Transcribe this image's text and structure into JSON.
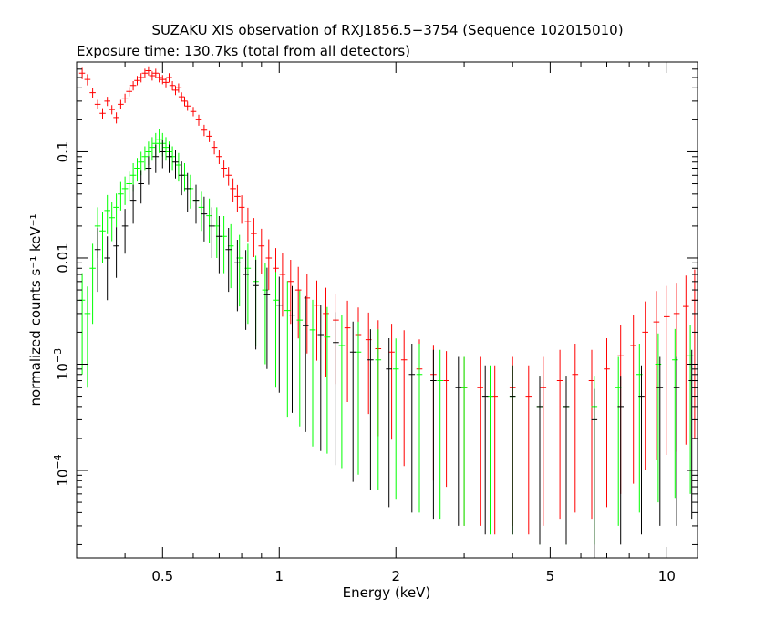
{
  "chart_data": {
    "type": "scatter",
    "title": "SUZAKU XIS observation of RXJ1856.5−3754 (Sequence 102015010)",
    "subtitle": "Exposure time: 130.7ks (total from all detectors)",
    "xlabel": "Energy (keV)",
    "ylabel": "normalized counts s⁻¹ keV⁻¹",
    "xscale": "log",
    "yscale": "log",
    "xlim": [
      0.3,
      12
    ],
    "ylim": [
      1.5e-05,
      0.7
    ],
    "grid": false,
    "x_ticks": [
      {
        "value": 0.5,
        "label": "0.5"
      },
      {
        "value": 1,
        "label": "1"
      },
      {
        "value": 2,
        "label": "2"
      },
      {
        "value": 5,
        "label": "5"
      },
      {
        "value": 10,
        "label": "10"
      }
    ],
    "y_ticks": [
      {
        "value": 0.1,
        "label": "0.1"
      },
      {
        "value": 0.01,
        "label": "0.01"
      },
      {
        "value": 0.001,
        "base": "10",
        "exp": "−3"
      },
      {
        "value": 0.0001,
        "base": "10",
        "exp": "−4"
      }
    ],
    "series": [
      {
        "color": "#ff0000",
        "points": [
          [
            0.31,
            0.55,
            0.12
          ],
          [
            0.32,
            0.48,
            0.12
          ],
          [
            0.33,
            0.36,
            0.1
          ],
          [
            0.34,
            0.28,
            0.1
          ],
          [
            0.35,
            0.23,
            0.12
          ],
          [
            0.36,
            0.3,
            0.1
          ],
          [
            0.37,
            0.25,
            0.1
          ],
          [
            0.38,
            0.21,
            0.12
          ],
          [
            0.39,
            0.28,
            0.1
          ],
          [
            0.4,
            0.32,
            0.1
          ],
          [
            0.41,
            0.37,
            0.1
          ],
          [
            0.42,
            0.42,
            0.1
          ],
          [
            0.43,
            0.47,
            0.1
          ],
          [
            0.44,
            0.5,
            0.1
          ],
          [
            0.45,
            0.55,
            0.1
          ],
          [
            0.46,
            0.58,
            0.1
          ],
          [
            0.47,
            0.52,
            0.1
          ],
          [
            0.48,
            0.55,
            0.1
          ],
          [
            0.49,
            0.5,
            0.1
          ],
          [
            0.5,
            0.48,
            0.1
          ],
          [
            0.51,
            0.45,
            0.1
          ],
          [
            0.52,
            0.5,
            0.1
          ],
          [
            0.53,
            0.42,
            0.1
          ],
          [
            0.54,
            0.38,
            0.1
          ],
          [
            0.55,
            0.4,
            0.1
          ],
          [
            0.56,
            0.33,
            0.1
          ],
          [
            0.57,
            0.3,
            0.1
          ],
          [
            0.58,
            0.27,
            0.1
          ],
          [
            0.6,
            0.24,
            0.1
          ],
          [
            0.62,
            0.2,
            0.12
          ],
          [
            0.64,
            0.16,
            0.12
          ],
          [
            0.66,
            0.14,
            0.12
          ],
          [
            0.68,
            0.11,
            0.14
          ],
          [
            0.7,
            0.09,
            0.15
          ],
          [
            0.72,
            0.07,
            0.18
          ],
          [
            0.74,
            0.06,
            0.2
          ],
          [
            0.76,
            0.045,
            0.25
          ],
          [
            0.78,
            0.038,
            0.28
          ],
          [
            0.8,
            0.03,
            0.3
          ],
          [
            0.83,
            0.022,
            0.35
          ],
          [
            0.86,
            0.017,
            0.4
          ],
          [
            0.9,
            0.013,
            0.45
          ],
          [
            0.94,
            0.01,
            0.5
          ],
          [
            0.98,
            0.008,
            0.55
          ],
          [
            1.02,
            0.007,
            0.6
          ],
          [
            1.07,
            0.006,
            0.6
          ],
          [
            1.12,
            0.005,
            0.65
          ],
          [
            1.18,
            0.0042,
            0.7
          ],
          [
            1.25,
            0.0036,
            0.7
          ],
          [
            1.32,
            0.003,
            0.75
          ],
          [
            1.4,
            0.0026,
            0.75
          ],
          [
            1.5,
            0.0022,
            0.8
          ],
          [
            1.6,
            0.0019,
            0.8
          ],
          [
            1.7,
            0.0017,
            0.8
          ],
          [
            1.8,
            0.0014,
            0.85
          ],
          [
            1.95,
            0.0013,
            0.85
          ],
          [
            2.1,
            0.0011,
            0.9
          ],
          [
            2.3,
            0.0009,
            0.9
          ],
          [
            2.5,
            0.0008,
            0.9
          ],
          [
            2.7,
            0.0007,
            0.9
          ],
          [
            3.0,
            0.0006,
            0.95
          ],
          [
            3.3,
            0.0006,
            0.95
          ],
          [
            3.6,
            0.0005,
            0.95
          ],
          [
            4.0,
            0.0006,
            0.95
          ],
          [
            4.4,
            0.0005,
            0.95
          ],
          [
            4.8,
            0.0006,
            0.95
          ],
          [
            5.3,
            0.0007,
            0.95
          ],
          [
            5.8,
            0.0008,
            0.95
          ],
          [
            6.4,
            0.0007,
            0.95
          ],
          [
            7.0,
            0.0009,
            0.95
          ],
          [
            7.6,
            0.0012,
            0.95
          ],
          [
            8.2,
            0.0015,
            0.95
          ],
          [
            8.8,
            0.002,
            0.95
          ],
          [
            9.4,
            0.0025,
            0.95
          ],
          [
            10.0,
            0.0028,
            0.95
          ],
          [
            10.6,
            0.003,
            0.95
          ],
          [
            11.2,
            0.0035,
            0.95
          ],
          [
            11.8,
            0.004,
            0.95
          ]
        ]
      },
      {
        "color": "#00ff00",
        "points": [
          [
            0.31,
            0.004,
            0.8
          ],
          [
            0.32,
            0.003,
            0.8
          ],
          [
            0.33,
            0.008,
            0.7
          ],
          [
            0.34,
            0.02,
            0.5
          ],
          [
            0.35,
            0.018,
            0.5
          ],
          [
            0.36,
            0.028,
            0.4
          ],
          [
            0.37,
            0.024,
            0.4
          ],
          [
            0.38,
            0.03,
            0.35
          ],
          [
            0.39,
            0.04,
            0.3
          ],
          [
            0.4,
            0.045,
            0.3
          ],
          [
            0.41,
            0.05,
            0.3
          ],
          [
            0.42,
            0.06,
            0.3
          ],
          [
            0.43,
            0.07,
            0.25
          ],
          [
            0.44,
            0.08,
            0.25
          ],
          [
            0.45,
            0.09,
            0.25
          ],
          [
            0.46,
            0.1,
            0.25
          ],
          [
            0.47,
            0.11,
            0.25
          ],
          [
            0.48,
            0.12,
            0.25
          ],
          [
            0.49,
            0.13,
            0.25
          ],
          [
            0.5,
            0.12,
            0.25
          ],
          [
            0.51,
            0.11,
            0.25
          ],
          [
            0.52,
            0.1,
            0.25
          ],
          [
            0.53,
            0.09,
            0.25
          ],
          [
            0.55,
            0.075,
            0.3
          ],
          [
            0.57,
            0.06,
            0.3
          ],
          [
            0.59,
            0.045,
            0.35
          ],
          [
            0.61,
            0.035,
            0.35
          ],
          [
            0.63,
            0.03,
            0.4
          ],
          [
            0.66,
            0.025,
            0.45
          ],
          [
            0.69,
            0.02,
            0.5
          ],
          [
            0.72,
            0.016,
            0.55
          ],
          [
            0.75,
            0.013,
            0.6
          ],
          [
            0.79,
            0.01,
            0.65
          ],
          [
            0.83,
            0.008,
            0.7
          ],
          [
            0.87,
            0.006,
            0.75
          ],
          [
            0.92,
            0.005,
            0.8
          ],
          [
            0.98,
            0.004,
            0.85
          ],
          [
            1.05,
            0.0032,
            0.9
          ],
          [
            1.13,
            0.0026,
            0.9
          ],
          [
            1.22,
            0.0021,
            0.92
          ],
          [
            1.33,
            0.0018,
            0.92
          ],
          [
            1.45,
            0.0015,
            0.93
          ],
          [
            1.6,
            0.0013,
            0.93
          ],
          [
            1.8,
            0.0011,
            0.94
          ],
          [
            2.0,
            0.0009,
            0.94
          ],
          [
            2.3,
            0.0008,
            0.95
          ],
          [
            2.6,
            0.0007,
            0.95
          ],
          [
            3.0,
            0.0006,
            0.95
          ],
          [
            3.5,
            0.0005,
            0.95
          ],
          [
            4.0,
            0.0005,
            0.95
          ],
          [
            4.7,
            0.0004,
            0.95
          ],
          [
            5.5,
            0.0004,
            0.95
          ],
          [
            6.5,
            0.0004,
            0.95
          ],
          [
            7.5,
            0.0006,
            0.95
          ],
          [
            8.5,
            0.0008,
            0.95
          ],
          [
            9.5,
            0.001,
            0.95
          ],
          [
            10.5,
            0.0011,
            0.95
          ],
          [
            11.5,
            0.0012,
            0.95
          ]
        ]
      },
      {
        "color": "#000000",
        "points": [
          [
            0.34,
            0.012,
            0.6
          ],
          [
            0.36,
            0.01,
            0.6
          ],
          [
            0.38,
            0.013,
            0.5
          ],
          [
            0.4,
            0.02,
            0.45
          ],
          [
            0.42,
            0.035,
            0.4
          ],
          [
            0.44,
            0.05,
            0.35
          ],
          [
            0.46,
            0.07,
            0.3
          ],
          [
            0.48,
            0.09,
            0.3
          ],
          [
            0.5,
            0.1,
            0.3
          ],
          [
            0.52,
            0.09,
            0.3
          ],
          [
            0.54,
            0.08,
            0.3
          ],
          [
            0.56,
            0.06,
            0.35
          ],
          [
            0.58,
            0.045,
            0.4
          ],
          [
            0.61,
            0.035,
            0.4
          ],
          [
            0.64,
            0.026,
            0.45
          ],
          [
            0.67,
            0.02,
            0.5
          ],
          [
            0.7,
            0.016,
            0.55
          ],
          [
            0.74,
            0.012,
            0.6
          ],
          [
            0.78,
            0.009,
            0.65
          ],
          [
            0.82,
            0.007,
            0.7
          ],
          [
            0.87,
            0.0055,
            0.75
          ],
          [
            0.93,
            0.0045,
            0.8
          ],
          [
            1.0,
            0.0036,
            0.85
          ],
          [
            1.08,
            0.0029,
            0.88
          ],
          [
            1.17,
            0.0023,
            0.9
          ],
          [
            1.28,
            0.0019,
            0.92
          ],
          [
            1.4,
            0.0016,
            0.93
          ],
          [
            1.55,
            0.0013,
            0.94
          ],
          [
            1.72,
            0.0011,
            0.94
          ],
          [
            1.92,
            0.0009,
            0.95
          ],
          [
            2.2,
            0.0008,
            0.95
          ],
          [
            2.5,
            0.0007,
            0.95
          ],
          [
            2.9,
            0.0006,
            0.95
          ],
          [
            3.4,
            0.0005,
            0.95
          ],
          [
            4.0,
            0.0005,
            0.95
          ],
          [
            4.7,
            0.0004,
            0.95
          ],
          [
            5.5,
            0.0004,
            0.95
          ],
          [
            6.5,
            0.0003,
            0.95
          ],
          [
            7.6,
            0.0004,
            0.95
          ],
          [
            8.6,
            0.0005,
            0.95
          ],
          [
            9.6,
            0.0006,
            0.95
          ],
          [
            10.6,
            0.0006,
            0.95
          ],
          [
            11.6,
            0.0007,
            0.95
          ]
        ]
      }
    ]
  }
}
